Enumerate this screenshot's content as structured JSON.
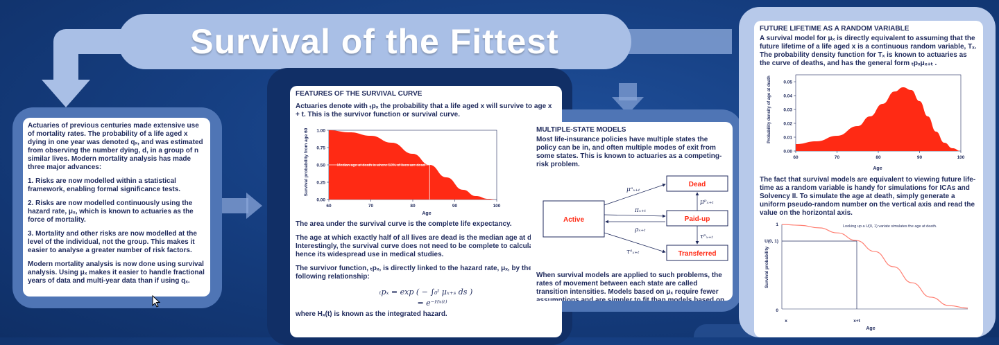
{
  "title": "Survival of the Fittest",
  "colors": {
    "background": "#163f82",
    "banner": "#a9bfe6",
    "frame": "#4a6fae",
    "panel_text": "#1f2a5c",
    "chart_red": "#ff2a14",
    "curve_salmon": "#ff7f72"
  },
  "intro": {
    "p1": "Actuaries of previous centuries made extensive use of mortality rates. The probability of a life aged x dying in one year was denoted qₓ, and was estimated from observing the number dying, d, in a group of n similar lives. Modern mortality analysis has made three major advances:",
    "p2": "1.   Risks are now modelled within a statistical framework, enabling formal significance tests.",
    "p3": "2. Risks are now modelled continuously using the hazard rate, μₓ, which is known to actuaries as the force of mortality.",
    "p4": "3.  Mortality and other risks are now modelled at the level of the individual, not the group.  This makes it easier to analyse a greater number of risk factors.",
    "p5": "Modern mortality analysis is now done using survival analysis. Using μₓ makes it easier to handle fractional years of data and multi-year data than if using qₓ."
  },
  "features": {
    "heading": "FEATURES OF THE SURVIVAL CURVE",
    "p1": "Actuaries denote with ₜpₓ the probability that a life aged x will survive to age x + t. This is the survivor function or survival curve.",
    "p2": "The area under the survival curve is the complete life expectancy.",
    "p3": "The age at which exactly half of all lives are dead is the median age at death. Interestingly, the survival curve does not need to be complete to calculate this, hence its widespread use in medical studies.",
    "p4": "The survivor function, ₜpₓ, is directly linked to the hazard rate, μₓ, by the following relationship:",
    "eq1": "ₜpₓ = exp ( − ∫₀ᵗ μₓ₊ₛ ds )",
    "eq2": "= e⁻ᴴˣ⁽ᵗ⁾",
    "p5": "where Hₓ(t) is known as the integrated hazard.",
    "chart": {
      "ylabel": "Survival probability from age 60",
      "xlabel": "Age",
      "annotation": "Median age at death is where 50% of lives are dead",
      "xticks": [
        "60",
        "70",
        "80",
        "90",
        "100"
      ],
      "yticks": [
        "0.00",
        "0.25",
        "0.50",
        "0.75",
        "1.00"
      ]
    }
  },
  "multistate": {
    "heading": "MULTIPLE-STATE MODELS",
    "p1": "Most life-insurance policies have multiple states the policy can be in,  and often multiple modes of exit from some states. This is known to actuaries as a competing-risk problem.",
    "p2": "When survival models are applied to such problems, the rates of movement between each state are called transition intensities. Models based on μₓ require fewer assumptions and are simpler to fit than models based on qₓ.",
    "states": {
      "active": "Active",
      "dead": "Dead",
      "paidup": "Paid-up",
      "transferred": "Transferred"
    },
    "arrows": {
      "mu_a": "μᵃₓ₊ₜ",
      "pi": "πₓ₊ₜ",
      "rho": "ρₓ₊ₜ",
      "tau_a": "τᵃₓ₊ₜ",
      "mu_p": "μᵖₓ₊ₜ",
      "tau_p": "τᵖₓ₊ₜ"
    }
  },
  "future": {
    "heading": "FUTURE LIFETIME AS A RANDOM VARIABLE",
    "p1": "A survival model for μₓ is directly equivalent to assuming that the future lifetime of a life aged x is a continuous random variable, Tₓ. The probability density function for Tₓ is known to actuaries as the curve of deaths, and has the general form ₜpₓμₓ₊ₜ .",
    "p2": "The fact that survival models are equivalent to viewing future life-time as a random variable is handy for simulations for ICAs and Solvency II. To simulate the age at death, simply generate a uniform pseudo-random number on the vertical axis and read the value on the horizontal axis.",
    "density_chart": {
      "ylabel": "Probability density of age at death",
      "xlabel": "Age",
      "xticks": [
        "60",
        "70",
        "80",
        "90",
        "100"
      ],
      "yticks": [
        "0.00",
        "0.01",
        "0.02",
        "0.03",
        "0.04",
        "0.05"
      ]
    },
    "sim_chart": {
      "ylabel": "Survival probability",
      "xlabel": "Age",
      "annotation": "Looking up a U(0, 1) variate simulates the age at death.",
      "ytick_top": "1",
      "ytick_u": "U(0, 1)",
      "ytick_bottom": "0",
      "xtick_x": "x",
      "xtick_xt": "x+t"
    }
  },
  "chart_data": [
    {
      "type": "area",
      "xlabel": "Age",
      "ylabel": "Survival probability from age 60",
      "xlim": [
        60,
        100
      ],
      "ylim": [
        0,
        1
      ],
      "x": [
        60,
        65,
        70,
        75,
        80,
        84,
        88,
        92,
        95,
        98,
        100
      ],
      "values": [
        1.0,
        0.97,
        0.92,
        0.82,
        0.66,
        0.5,
        0.32,
        0.14,
        0.05,
        0.01,
        0.0
      ],
      "median_age": 84,
      "annotation": "Median age at death is where 50% of lives are dead"
    },
    {
      "type": "area",
      "xlabel": "Age",
      "ylabel": "Probability density of age at death",
      "xlim": [
        60,
        100
      ],
      "ylim": [
        0,
        0.055
      ],
      "x": [
        60,
        65,
        70,
        75,
        78,
        81,
        84,
        86,
        88,
        90,
        92,
        94,
        96,
        98,
        100
      ],
      "values": [
        0.005,
        0.007,
        0.011,
        0.018,
        0.025,
        0.034,
        0.043,
        0.046,
        0.044,
        0.036,
        0.025,
        0.014,
        0.006,
        0.002,
        0.0
      ]
    },
    {
      "type": "line",
      "xlabel": "Age",
      "ylabel": "Survival probability",
      "ylim": [
        0,
        1
      ],
      "x": [
        0,
        0.1,
        0.2,
        0.3,
        0.4,
        0.5,
        0.6,
        0.7,
        0.8,
        0.9,
        1.0
      ],
      "values": [
        1.0,
        0.99,
        0.96,
        0.9,
        0.81,
        0.68,
        0.5,
        0.31,
        0.14,
        0.04,
        0.01
      ],
      "annotation": "Looking up a U(0, 1) variate simulates the age at death."
    }
  ]
}
